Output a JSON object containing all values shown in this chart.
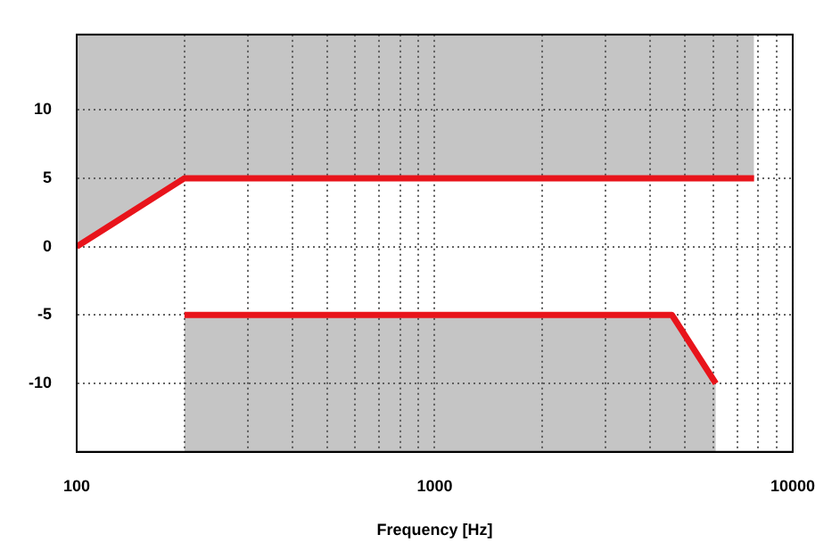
{
  "chart_data": {
    "type": "line",
    "xlabel": "Frequency [Hz]",
    "log": "x",
    "grid": true,
    "legend": false,
    "marker": "none",
    "line_style": "solid",
    "xlim": [
      100,
      10000
    ],
    "ylim": [
      -15,
      15.5
    ],
    "xticks": [
      100,
      {
        "value": 200,
        "label": null
      },
      {
        "value": 300,
        "label": null
      },
      {
        "value": 400,
        "label": null
      },
      {
        "value": 500,
        "label": null
      },
      {
        "value": 600,
        "label": null
      },
      {
        "value": 700,
        "label": null
      },
      {
        "value": 800,
        "label": null
      },
      {
        "value": 900,
        "label": null
      },
      1000,
      {
        "value": 2000,
        "label": null
      },
      {
        "value": 3000,
        "label": null
      },
      {
        "value": 4000,
        "label": null
      },
      {
        "value": 5000,
        "label": null
      },
      {
        "value": 6000,
        "label": null
      },
      {
        "value": 7000,
        "label": null
      },
      {
        "value": 8000,
        "label": null
      },
      {
        "value": 9000,
        "label": null
      },
      10000
    ],
    "yticks": [
      -10,
      -5,
      0,
      5,
      10
    ],
    "series": [
      {
        "color": "#e8141b",
        "x": [
          100,
          200,
          7800
        ],
        "values": [
          0,
          5,
          5
        ],
        "lower": [
          0,
          5,
          5
        ],
        "upper": [
          15.5,
          15.5,
          15.5
        ]
      },
      {
        "color": "#e8141b",
        "x": [
          200,
          4600,
          6100
        ],
        "values": [
          -5,
          -5,
          -10
        ],
        "lower": [
          -15,
          -15,
          -15
        ],
        "upper": [
          -5,
          -5,
          -10
        ]
      }
    ]
  }
}
